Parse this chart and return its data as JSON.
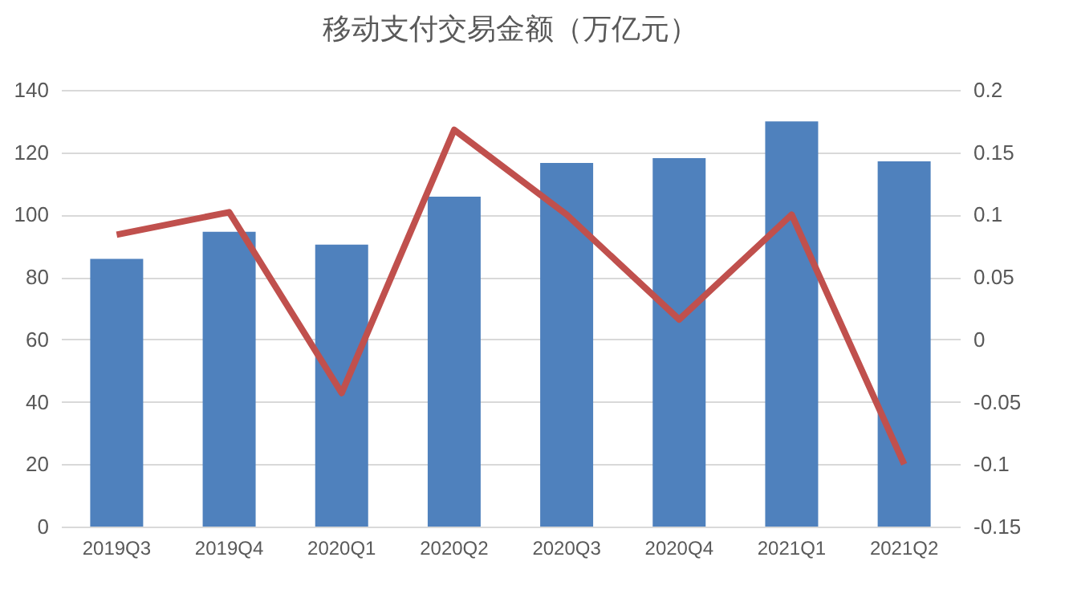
{
  "chart_data": {
    "type": "bar",
    "title": "移动支付交易金额（万亿元）",
    "categories": [
      "2019Q3",
      "2019Q4",
      "2020Q1",
      "2020Q2",
      "2020Q3",
      "2020Q4",
      "2021Q1",
      "2021Q2"
    ],
    "series": [
      {
        "color": "#4f81bd",
        "values": [
          85.8,
          94.5,
          90.4,
          105.8,
          116.6,
          118.1,
          129.9,
          117.1
        ]
      },
      {
        "type": "line",
        "axis": "y2",
        "color": "#c0504d",
        "values": [
          0.084,
          0.102,
          -0.043,
          0.168,
          0.1,
          0.016,
          0.1,
          -0.1
        ]
      }
    ],
    "ylim": [
      0,
      140
    ],
    "yticks": [
      0,
      20,
      40,
      60,
      80,
      100,
      120,
      140
    ],
    "y2lim": [
      -0.15,
      0.2
    ],
    "y2ticks": [
      -0.15,
      -0.1,
      -0.05,
      0,
      0.05,
      0.1,
      0.15,
      0.2
    ],
    "grid": "y"
  }
}
